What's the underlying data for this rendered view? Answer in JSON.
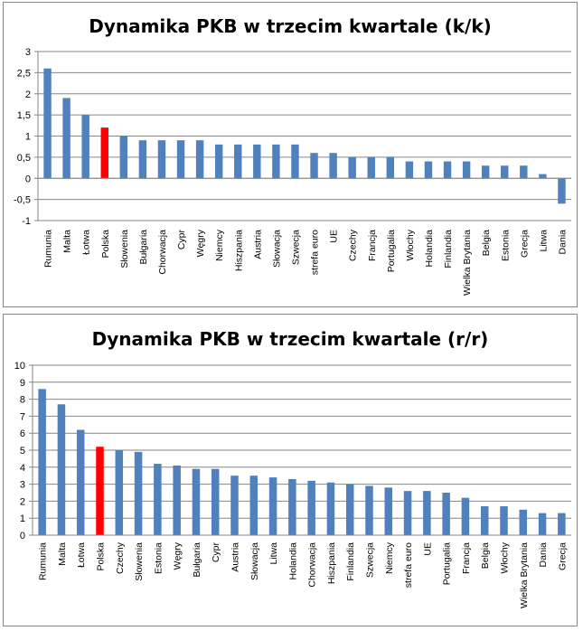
{
  "chart_data": [
    {
      "type": "bar",
      "title": "Dynamika PKB w trzecim kwartale (k/k)",
      "xlabel": "",
      "ylabel": "",
      "ylim": [
        -1,
        3
      ],
      "yticks": [
        "3",
        "2,5",
        "2",
        "1,5",
        "1",
        "0,5",
        "0",
        "-0,5",
        "-1"
      ],
      "ytick_values": [
        3,
        2.5,
        2,
        1.5,
        1,
        0.5,
        0,
        -0.5,
        -1
      ],
      "grid": true,
      "bar_color": "#4f81bd",
      "highlight_color": "#ff0000",
      "highlight_category": "Polska",
      "categories": [
        "Rumunia",
        "Malta",
        "Łotwa",
        "Polska",
        "Słowenia",
        "Bułgaria",
        "Chorwacja",
        "Cypr",
        "Węgry",
        "Niemcy",
        "Hiszpania",
        "Austria",
        "Słowacja",
        "Szwecja",
        "strefa euro",
        "UE",
        "Czechy",
        "Francja",
        "Portugalia",
        "Włochy",
        "Holandia",
        "Finlandia",
        "Wielka Brytania",
        "Belgia",
        "Estonia",
        "Grecja",
        "Litwa",
        "Dania"
      ],
      "values": [
        2.6,
        1.9,
        1.5,
        1.2,
        1.0,
        0.9,
        0.9,
        0.9,
        0.9,
        0.8,
        0.8,
        0.8,
        0.8,
        0.8,
        0.6,
        0.6,
        0.5,
        0.5,
        0.5,
        0.4,
        0.4,
        0.4,
        0.4,
        0.3,
        0.3,
        0.3,
        0.1,
        -0.6
      ]
    },
    {
      "type": "bar",
      "title": "Dynamika PKB w trzecim kwartale (r/r)",
      "xlabel": "",
      "ylabel": "",
      "ylim": [
        0,
        10
      ],
      "yticks": [
        "10",
        "9",
        "8",
        "7",
        "6",
        "5",
        "4",
        "3",
        "2",
        "1",
        "0"
      ],
      "ytick_values": [
        10,
        9,
        8,
        7,
        6,
        5,
        4,
        3,
        2,
        1,
        0
      ],
      "grid": true,
      "bar_color": "#4f81bd",
      "highlight_color": "#ff0000",
      "highlight_category": "Polska",
      "categories": [
        "Rumunia",
        "Malta",
        "Łotwa",
        "Polska",
        "Czechy",
        "Słowenia",
        "Estonia",
        "Węgry",
        "Bułgaria",
        "Cypr",
        "Austria",
        "Słowacja",
        "Litwa",
        "Holandia",
        "Chorwacja",
        "Hiszpania",
        "Finlandia",
        "Szwecja",
        "Niemcy",
        "strefa euro",
        "UE",
        "Portugalia",
        "Francja",
        "Belgia",
        "Włochy",
        "Wielka Brytania",
        "Dania",
        "Grecja"
      ],
      "values": [
        8.6,
        7.7,
        6.2,
        5.2,
        5.0,
        4.9,
        4.2,
        4.1,
        3.9,
        3.9,
        3.5,
        3.5,
        3.4,
        3.3,
        3.2,
        3.1,
        3.0,
        2.9,
        2.8,
        2.6,
        2.6,
        2.5,
        2.2,
        1.7,
        1.7,
        1.5,
        1.3,
        1.3
      ]
    }
  ]
}
